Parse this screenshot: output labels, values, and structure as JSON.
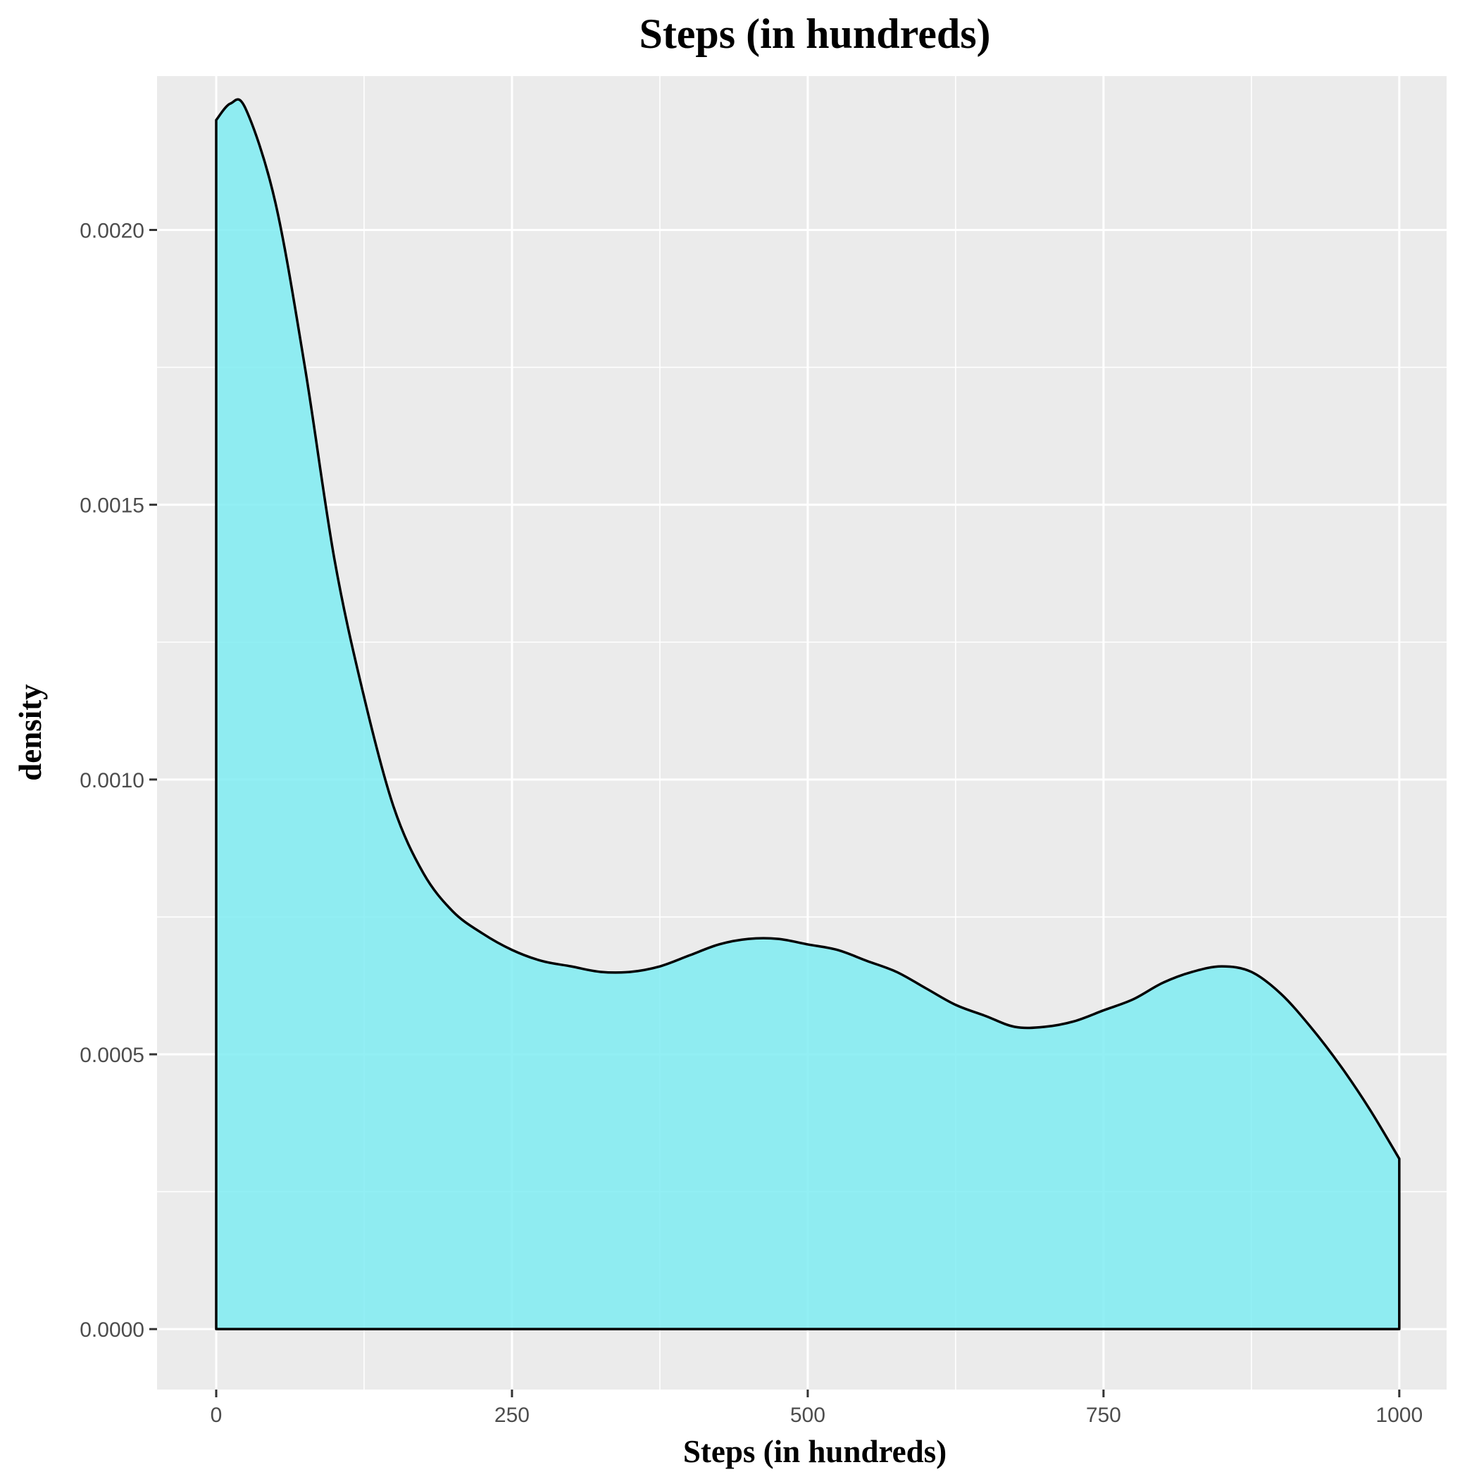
{
  "chart_data": {
    "type": "area",
    "title": "Steps (in hundreds)",
    "xlabel": "Steps (in hundreds)",
    "ylabel": "density",
    "xlim": [
      -50,
      1040
    ],
    "ylim": [
      -0.00011,
      0.00228
    ],
    "x_ticks": [
      0,
      250,
      500,
      750,
      1000
    ],
    "x_tick_labels": [
      "0",
      "250",
      "500",
      "750",
      "1000"
    ],
    "y_ticks": [
      0.0,
      0.0005,
      0.001,
      0.0015,
      0.002
    ],
    "y_tick_labels": [
      "0.0000",
      "0.0005",
      "0.0010",
      "0.0015",
      "0.0020"
    ],
    "grid": true,
    "fill_color": "#7fecf2",
    "line_color": "#000000",
    "panel_color": "#ebebeb",
    "series": [
      {
        "x": [
          0,
          12,
          25,
          50,
          75,
          100,
          125,
          150,
          175,
          200,
          225,
          250,
          275,
          300,
          325,
          350,
          375,
          400,
          425,
          450,
          475,
          500,
          525,
          550,
          575,
          600,
          625,
          650,
          675,
          700,
          725,
          750,
          775,
          800,
          825,
          850,
          875,
          900,
          925,
          950,
          975,
          1000
        ],
        "y": [
          0.0022,
          0.00223,
          0.00222,
          0.00205,
          0.00175,
          0.0014,
          0.00115,
          0.00095,
          0.00083,
          0.00076,
          0.00072,
          0.00069,
          0.00067,
          0.00066,
          0.00065,
          0.00065,
          0.00066,
          0.00068,
          0.0007,
          0.00071,
          0.00071,
          0.0007,
          0.00069,
          0.00067,
          0.00065,
          0.00062,
          0.00059,
          0.00057,
          0.00055,
          0.00055,
          0.00056,
          0.00058,
          0.0006,
          0.00063,
          0.00065,
          0.00066,
          0.00065,
          0.00061,
          0.00055,
          0.00048,
          0.0004,
          0.00031
        ]
      }
    ]
  }
}
